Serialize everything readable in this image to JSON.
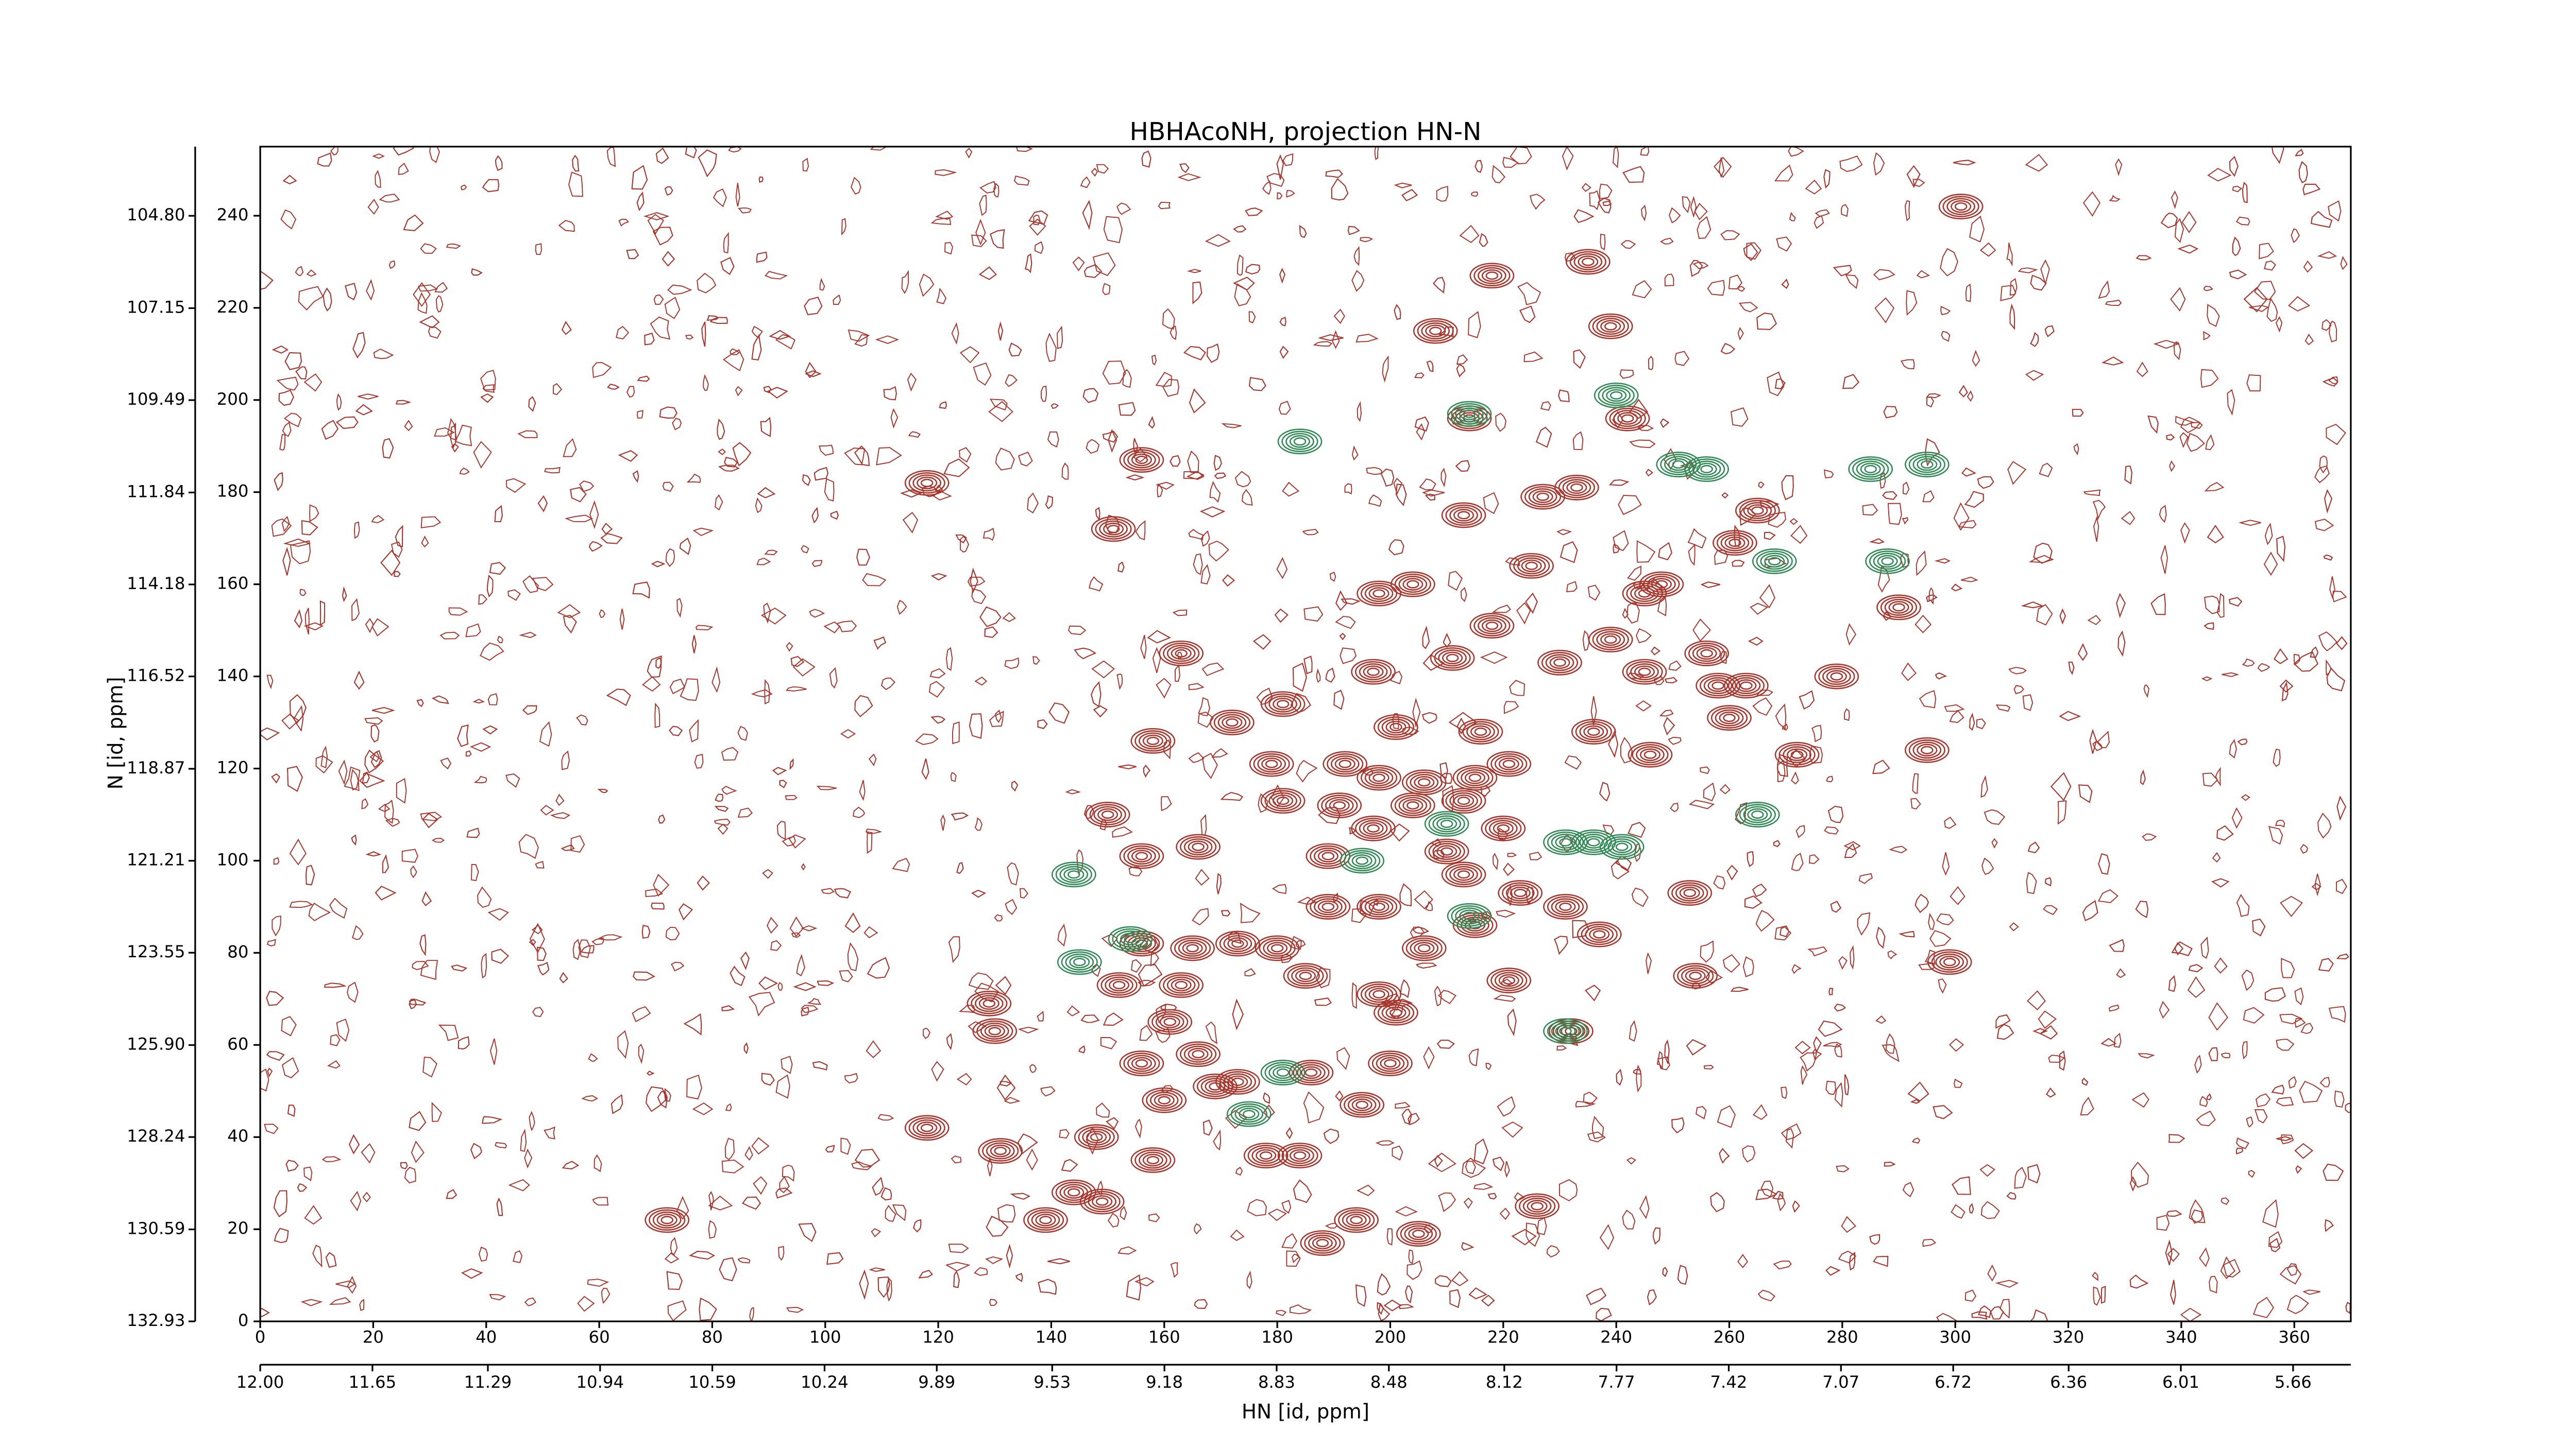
{
  "chart_data": {
    "type": "contour",
    "title": "HBHAcoNH, projection HN-N",
    "xlabel": "HN [id, ppm]",
    "ylabel": "N [id, ppm]",
    "xlim": [
      0,
      370
    ],
    "ylim": [
      0,
      255
    ],
    "xticks": [
      0,
      20,
      40,
      60,
      80,
      100,
      120,
      140,
      160,
      180,
      200,
      220,
      240,
      260,
      280,
      300,
      320,
      340,
      360
    ],
    "yticks": [
      0,
      20,
      40,
      60,
      80,
      100,
      120,
      140,
      160,
      180,
      200,
      220,
      240
    ],
    "x2lim": [
      12.0,
      5.48
    ],
    "x2ticks": [
      {
        "value": 12.0,
        "label": "12.00"
      },
      11.65,
      11.29,
      10.94,
      10.59,
      10.24,
      9.89,
      9.53,
      9.18,
      8.83,
      8.48,
      8.12,
      7.77,
      7.42,
      7.07,
      6.72,
      6.36,
      6.01,
      5.66
    ],
    "y2lim": [
      132.93,
      103.04
    ],
    "y2ticks": [
      132.93,
      130.59,
      128.24,
      {
        "value": 125.9,
        "label": "125.90"
      },
      123.55,
      121.21,
      118.87,
      116.52,
      114.18,
      111.84,
      109.49,
      107.15,
      {
        "value": 104.8,
        "label": "104.80"
      }
    ],
    "series": [
      {
        "color": "#a8362c",
        "x": [
          301,
          218,
          235,
          208,
          239,
          214,
          242,
          118,
          156,
          227,
          233,
          213,
          265,
          151,
          261,
          204,
          198,
          225,
          248,
          245,
          290,
          218,
          239,
          163,
          211,
          230,
          245,
          256,
          258,
          263,
          279,
          197,
          181,
          172,
          158,
          201,
          216,
          236,
          260,
          272,
          295,
          246,
          179,
          192,
          198,
          221,
          215,
          206,
          181,
          191,
          204,
          213,
          150,
          197,
          220,
          210,
          156,
          166,
          189,
          213,
          223,
          231,
          253,
          189,
          198,
          206,
          215,
          237,
          156,
          165,
          173,
          180,
          152,
          163,
          185,
          198,
          221,
          254,
          299,
          129,
          130,
          161,
          201,
          232,
          156,
          166,
          173,
          169,
          186,
          200,
          160,
          195,
          118,
          131,
          148,
          158,
          178,
          184,
          144,
          139,
          149,
          226,
          194,
          188,
          205,
          72
        ],
        "y": [
          242,
          227,
          230,
          215,
          216,
          196,
          196,
          182,
          187,
          179,
          181,
          175,
          176,
          172,
          169,
          160,
          158,
          164,
          160,
          158,
          155,
          151,
          148,
          145,
          144,
          143,
          141,
          145,
          138,
          138,
          140,
          141,
          134,
          130,
          126,
          129,
          128,
          128,
          131,
          123,
          124,
          123,
          121,
          121,
          118,
          121,
          118,
          117,
          113,
          112,
          112,
          113,
          110,
          107,
          107,
          102,
          101,
          103,
          101,
          97,
          93,
          90,
          93,
          90,
          90,
          81,
          86,
          84,
          82,
          81,
          82,
          81,
          73,
          73,
          75,
          71,
          74,
          75,
          78,
          69,
          63,
          65,
          67,
          63,
          56,
          58,
          52,
          51,
          54,
          56,
          48,
          47,
          42,
          37,
          40,
          35,
          36,
          36,
          28,
          22,
          26,
          25,
          22,
          17,
          19,
          22
        ]
      },
      {
        "color": "#2f8a55",
        "x": [
          184,
          240,
          214,
          256,
          295,
          285,
          251,
          288,
          268,
          144,
          154,
          145,
          236,
          231,
          241,
          265,
          175,
          181,
          231,
          195,
          210,
          214
        ],
        "y": [
          191,
          201,
          197,
          185,
          186,
          185,
          186,
          165,
          165,
          97,
          83,
          78,
          104,
          104,
          103,
          110,
          45,
          54,
          63,
          100,
          108,
          88
        ]
      }
    ]
  }
}
